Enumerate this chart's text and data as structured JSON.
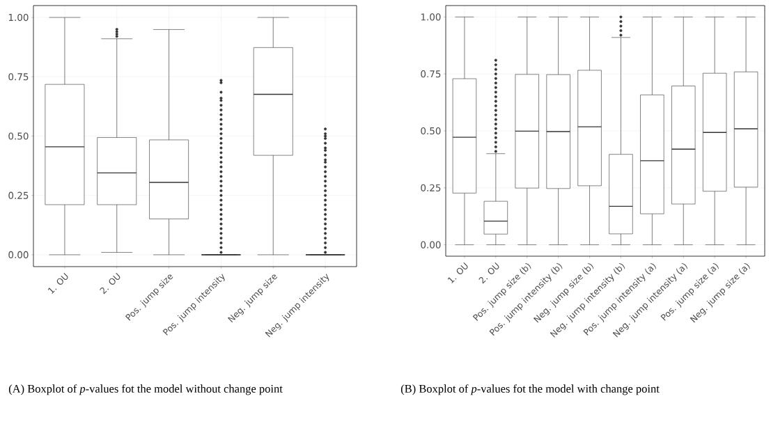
{
  "chart_data": [
    {
      "type": "box",
      "categories": [
        "1. OU",
        "2. OU",
        "Pos. jump size",
        "Pos. jump intensity",
        "Neg. jump size",
        "Neg. jump intensity"
      ],
      "boxes": [
        {
          "low": 0,
          "q1": 0.211,
          "median": 0.455,
          "q3": 0.718,
          "high": 1
        },
        {
          "low": 0.01,
          "q1": 0.211,
          "median": 0.345,
          "q3": 0.494,
          "high": 0.91,
          "outliers": [
            0.92,
            0.93,
            0.94,
            0.95
          ]
        },
        {
          "low": 0,
          "q1": 0.151,
          "median": 0.305,
          "q3": 0.484,
          "high": 0.949
        },
        {
          "low": 0,
          "q1": 0,
          "median": 0,
          "q3": 0,
          "high": 0,
          "outliers": [
            0.01,
            0.03,
            0.05,
            0.07,
            0.09,
            0.11,
            0.13,
            0.15,
            0.17,
            0.19,
            0.21,
            0.23,
            0.25,
            0.27,
            0.29,
            0.31,
            0.33,
            0.35,
            0.37,
            0.39,
            0.41,
            0.43,
            0.45,
            0.47,
            0.49,
            0.51,
            0.53,
            0.55,
            0.57,
            0.59,
            0.61,
            0.63,
            0.65,
            0.66,
            0.685,
            0.725,
            0.735
          ]
        },
        {
          "low": 0,
          "q1": 0.419,
          "median": 0.676,
          "q3": 0.873,
          "high": 1
        },
        {
          "low": 0,
          "q1": 0,
          "median": 0,
          "q3": 0,
          "high": 0,
          "outliers": [
            0.01,
            0.03,
            0.05,
            0.07,
            0.09,
            0.11,
            0.13,
            0.15,
            0.17,
            0.19,
            0.21,
            0.23,
            0.25,
            0.27,
            0.29,
            0.31,
            0.33,
            0.35,
            0.37,
            0.39,
            0.4,
            0.42,
            0.44,
            0.45,
            0.47,
            0.49,
            0.5,
            0.51,
            0.53
          ]
        }
      ],
      "ylim": [
        -0.05,
        1.05
      ],
      "yticks": [
        {
          "value": 0,
          "label": "0.00"
        },
        {
          "value": 0.25,
          "label": "0.25"
        },
        {
          "value": 0.5,
          "label": "0.50"
        },
        {
          "value": 0.75,
          "label": "0.75"
        },
        {
          "value": 1,
          "label": "1.00"
        }
      ],
      "grid": true,
      "color": "#333333",
      "annotations": [
        "(A) Boxplot of *p*-values fot the model without change point"
      ]
    },
    {
      "type": "box",
      "categories": [
        "1. OU",
        "2. OU",
        "Pos. jump size (b)",
        "Pos. jump intensity (b)",
        "Neg. jump size (b)",
        "Neg. jump intensity (b)",
        "Pos. jump intensity (a)",
        "Neg. jump intensity (a)",
        "Pos. jump size (a)",
        "Neg. jump size (a)"
      ],
      "boxes": [
        {
          "low": 0,
          "q1": 0.227,
          "median": 0.472,
          "q3": 0.729,
          "high": 1
        },
        {
          "low": 0,
          "q1": 0.047,
          "median": 0.104,
          "q3": 0.191,
          "high": 0.4,
          "outliers": [
            0.41,
            0.43,
            0.45,
            0.47,
            0.49,
            0.51,
            0.53,
            0.55,
            0.57,
            0.59,
            0.61,
            0.63,
            0.65,
            0.67,
            0.69,
            0.71,
            0.73,
            0.75,
            0.77,
            0.79,
            0.81
          ]
        },
        {
          "low": 0,
          "q1": 0.249,
          "median": 0.499,
          "q3": 0.748,
          "high": 1
        },
        {
          "low": 0,
          "q1": 0.247,
          "median": 0.497,
          "q3": 0.747,
          "high": 1
        },
        {
          "low": 0,
          "q1": 0.259,
          "median": 0.518,
          "q3": 0.766,
          "high": 1
        },
        {
          "low": 0,
          "q1": 0.048,
          "median": 0.169,
          "q3": 0.397,
          "high": 0.91,
          "outliers": [
            0.92,
            0.94,
            0.96,
            0.98,
            1
          ]
        },
        {
          "low": 0,
          "q1": 0.136,
          "median": 0.369,
          "q3": 0.658,
          "high": 1
        },
        {
          "low": 0,
          "q1": 0.179,
          "median": 0.42,
          "q3": 0.697,
          "high": 1
        },
        {
          "low": 0,
          "q1": 0.235,
          "median": 0.493,
          "q3": 0.753,
          "high": 1
        },
        {
          "low": 0,
          "q1": 0.253,
          "median": 0.509,
          "q3": 0.759,
          "high": 1
        }
      ],
      "ylim": [
        -0.05,
        1.05
      ],
      "yticks": [
        {
          "value": 0,
          "label": "0.00"
        },
        {
          "value": 0.25,
          "label": "0.25"
        },
        {
          "value": 0.5,
          "label": "0.50"
        },
        {
          "value": 0.75,
          "label": "0.75"
        },
        {
          "value": 1,
          "label": "1.00"
        }
      ],
      "grid": true,
      "color": "#333333",
      "annotations": [
        "(B) Boxplot of *p*-values fot the model with change point"
      ]
    }
  ]
}
